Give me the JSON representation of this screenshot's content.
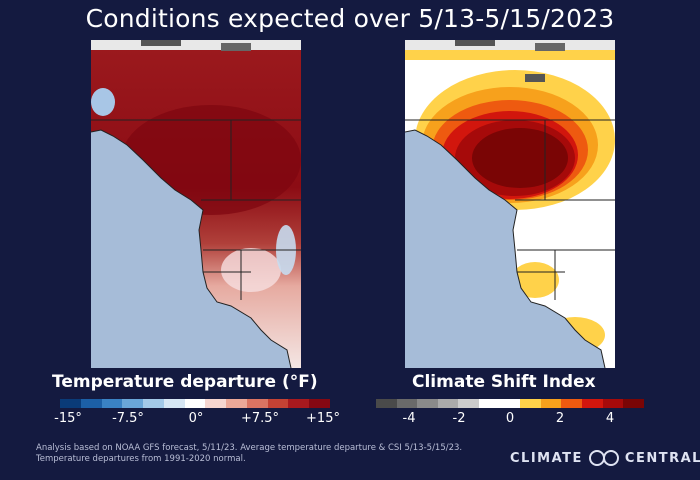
{
  "title": "Conditions expected over 5/13-5/15/2023",
  "temperature_map": {
    "title": "Temperature departure (°F)",
    "legend_ticks": [
      "-15°",
      "-7.5°",
      "0°",
      "+7.5°",
      "+15°"
    ],
    "legend_colors": [
      "#0a3b78",
      "#1c5fa6",
      "#3a82c4",
      "#6aa6d8",
      "#a3c9e8",
      "#d6e6f4",
      "#ffffff",
      "#f6d6d0",
      "#eca898",
      "#db7462",
      "#c44234",
      "#a8191e",
      "#850812"
    ]
  },
  "csi_map": {
    "title": "Climate Shift Index",
    "legend_ticks": [
      "-4",
      "-2",
      "0",
      "2",
      "4"
    ],
    "legend_colors": [
      "#4a4a4a",
      "#6a6a6a",
      "#8a8a8a",
      "#aaaaaa",
      "#cccccc",
      "#ffffff",
      "#ffffff",
      "#ffd24a",
      "#f7a11c",
      "#ee5a10",
      "#d2160d",
      "#a60a0a",
      "#7a0505"
    ]
  },
  "footnote": {
    "line1": "Analysis based on NOAA GFS forecast, 5/11/23. Average temperature departure  & CSI 5/13-5/15/23.",
    "line2": "Temperature departures from 1991-2020 normal."
  },
  "logo": {
    "left": "CLIMATE",
    "right": "CENTRAL"
  }
}
